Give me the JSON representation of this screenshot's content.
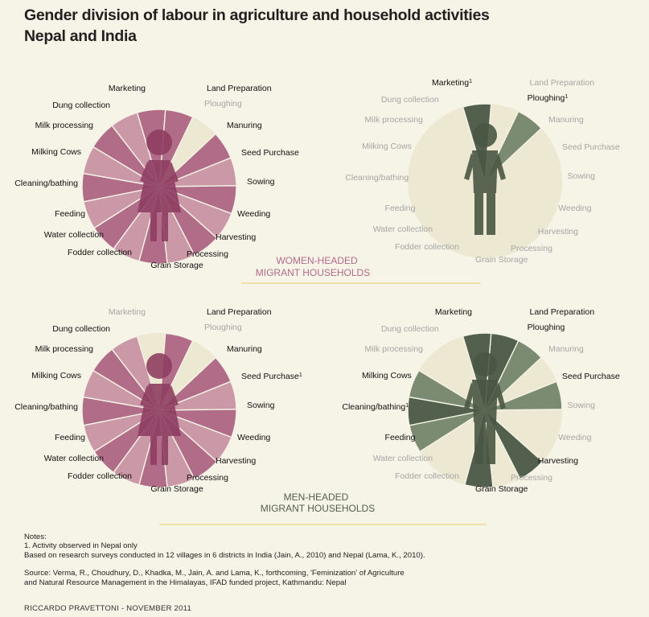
{
  "title": {
    "line1": "Gender division of labour in agriculture and household activities",
    "line2": "Nepal and India"
  },
  "colors": {
    "women_fill": "#c48aa0",
    "women_dark": "#a7577a",
    "men_fill": "#7b8b72",
    "men_dark": "#53604d",
    "inactive_fill": "#ece8d1",
    "inactive_label": "#a6a6a6",
    "active_label": "#111111",
    "rule": "#e8cf6c",
    "section_label": "#b46a8c"
  },
  "chart_data": [
    {
      "type": "radial",
      "id": "women-headed-women",
      "group": "Women-headed migrant households",
      "activities": [
        {
          "label": "Land Preparation",
          "sup": "",
          "active": true
        },
        {
          "label": "Ploughing",
          "sup": "",
          "active": false
        },
        {
          "label": "Manuring",
          "sup": "",
          "active": true
        },
        {
          "label": "Seed Purchase",
          "sup": "",
          "active": true
        },
        {
          "label": "Sowing",
          "sup": "",
          "active": true
        },
        {
          "label": "Weeding",
          "sup": "",
          "active": true
        },
        {
          "label": "Harvesting",
          "sup": "",
          "active": true
        },
        {
          "label": "Processing",
          "sup": "",
          "active": true
        },
        {
          "label": "Grain Storage",
          "sup": "",
          "active": true
        },
        {
          "label": "Fodder collection",
          "sup": "",
          "active": true
        },
        {
          "label": "Water collection",
          "sup": "",
          "active": true
        },
        {
          "label": "Feeding",
          "sup": "",
          "active": true
        },
        {
          "label": "Cleaning/bathing",
          "sup": "",
          "active": true
        },
        {
          "label": "Milking Cows",
          "sup": "",
          "active": true
        },
        {
          "label": "Milk processing",
          "sup": "",
          "active": true
        },
        {
          "label": "Dung collection",
          "sup": "",
          "active": true
        },
        {
          "label": "Marketing",
          "sup": "",
          "active": true
        }
      ]
    },
    {
      "type": "radial",
      "id": "women-headed-men",
      "group": "Women-headed migrant households",
      "activities": [
        {
          "label": "Land Preparation",
          "sup": "",
          "active": false
        },
        {
          "label": "Ploughing",
          "sup": "1",
          "active": true
        },
        {
          "label": "Manuring",
          "sup": "",
          "active": false
        },
        {
          "label": "Seed Purchase",
          "sup": "",
          "active": false
        },
        {
          "label": "Sowing",
          "sup": "",
          "active": false
        },
        {
          "label": "Weeding",
          "sup": "",
          "active": false
        },
        {
          "label": "Harvesting",
          "sup": "",
          "active": false
        },
        {
          "label": "Processing",
          "sup": "",
          "active": false
        },
        {
          "label": "Grain Storage",
          "sup": "",
          "active": false
        },
        {
          "label": "Fodder collection",
          "sup": "",
          "active": false
        },
        {
          "label": "Water collection",
          "sup": "",
          "active": false
        },
        {
          "label": "Feeding",
          "sup": "",
          "active": false
        },
        {
          "label": "Cleaning/bathing",
          "sup": "",
          "active": false
        },
        {
          "label": "Milking Cows",
          "sup": "",
          "active": false
        },
        {
          "label": "Milk processing",
          "sup": "",
          "active": false
        },
        {
          "label": "Dung collection",
          "sup": "",
          "active": false
        },
        {
          "label": "Marketing",
          "sup": "1",
          "active": true
        }
      ]
    },
    {
      "type": "radial",
      "id": "men-headed-women",
      "group": "Men-headed migrant households",
      "activities": [
        {
          "label": "Land Preparation",
          "sup": "",
          "active": true
        },
        {
          "label": "Ploughing",
          "sup": "",
          "active": false
        },
        {
          "label": "Manuring",
          "sup": "",
          "active": true
        },
        {
          "label": "Seed Purchase",
          "sup": "1",
          "active": true
        },
        {
          "label": "Sowing",
          "sup": "",
          "active": true
        },
        {
          "label": "Weeding",
          "sup": "",
          "active": true
        },
        {
          "label": "Harvesting",
          "sup": "",
          "active": true
        },
        {
          "label": "Processing",
          "sup": "",
          "active": true
        },
        {
          "label": "Grain Storage",
          "sup": "",
          "active": true
        },
        {
          "label": "Fodder collection",
          "sup": "",
          "active": true
        },
        {
          "label": "Water collection",
          "sup": "",
          "active": true
        },
        {
          "label": "Feeding",
          "sup": "",
          "active": true
        },
        {
          "label": "Cleaning/bathing",
          "sup": "",
          "active": true
        },
        {
          "label": "Milking Cows",
          "sup": "",
          "active": true
        },
        {
          "label": "Milk processing",
          "sup": "",
          "active": true
        },
        {
          "label": "Dung collection",
          "sup": "",
          "active": true
        },
        {
          "label": "Marketing",
          "sup": "",
          "active": false
        }
      ]
    },
    {
      "type": "radial",
      "id": "men-headed-men",
      "group": "Men-headed migrant households",
      "activities": [
        {
          "label": "Land Preparation",
          "sup": "",
          "active": true
        },
        {
          "label": "Ploughing",
          "sup": "",
          "active": true
        },
        {
          "label": "Manuring",
          "sup": "",
          "active": false
        },
        {
          "label": "Seed Purchase",
          "sup": "",
          "active": true
        },
        {
          "label": "Sowing",
          "sup": "",
          "active": false
        },
        {
          "label": "Weeding",
          "sup": "",
          "active": false
        },
        {
          "label": "Harvesting",
          "sup": "",
          "active": true
        },
        {
          "label": "Processing",
          "sup": "",
          "active": false
        },
        {
          "label": "Grain Storage",
          "sup": "",
          "active": true
        },
        {
          "label": "Fodder collection",
          "sup": "",
          "active": false
        },
        {
          "label": "Water collection",
          "sup": "",
          "active": false
        },
        {
          "label": "Feeding",
          "sup": "",
          "active": true
        },
        {
          "label": "Cleaning/bathing",
          "sup": "1",
          "active": true
        },
        {
          "label": "Milking Cows",
          "sup": "",
          "active": true
        },
        {
          "label": "Milk processing",
          "sup": "",
          "active": false
        },
        {
          "label": "Dung collection",
          "sup": "",
          "active": false
        },
        {
          "label": "Marketing",
          "sup": "",
          "active": true
        }
      ]
    }
  ],
  "section_labels": {
    "women_headed": [
      "WOMEN-HEADED",
      "MIGRANT HOUSEHOLDS"
    ],
    "men_headed": [
      "MEN-HEADED",
      "MIGRANT HOUSEHOLDS"
    ]
  },
  "notes": {
    "heading": "Notes:",
    "note1": "1. Activity observed in Nepal only",
    "basis": "Based on research surveys conducted in 12 villages in 6 districts in India (Jain, A., 2010) and Nepal (Lama, K., 2010).",
    "source1": "Source: Verma, R., Choudhury, D., Khadka, M., Jain, A. and Lama, K., forthcoming, 'Feminization' of Agriculture",
    "source2": "and Natural Resource Management in the Himalayas, IFAD funded project,  Kathmandu: Nepal"
  },
  "credit": "RICCARDO PRAVETTONI - NOVEMBER 2011"
}
